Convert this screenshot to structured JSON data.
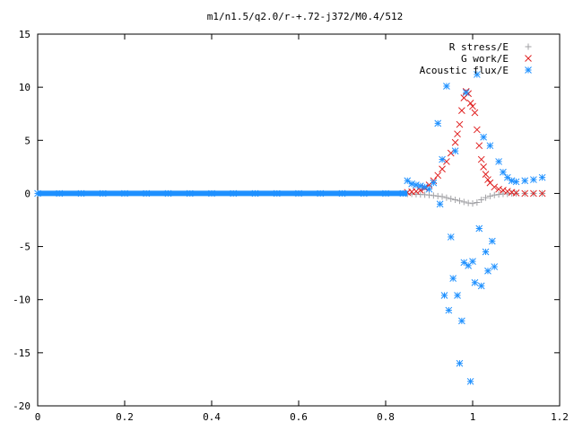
{
  "chart_data": {
    "type": "scatter",
    "title": "m1/n1.5/q2.0/r-+.72-j372/M0.4/512",
    "xlabel": "",
    "ylabel": "",
    "xlim": [
      0,
      1.2
    ],
    "ylim": [
      -20,
      15
    ],
    "xticks": [
      "0",
      "0.2",
      "0.4",
      "0.6",
      "0.8",
      "1",
      "1.2"
    ],
    "yticks": [
      "15",
      "10",
      "5",
      "0",
      "-5",
      "-10",
      "-15",
      "-20"
    ],
    "grid": false,
    "legend_position": "top-right",
    "series": [
      {
        "name": "R stress/E",
        "color": "#a0a0a4",
        "marker": "plus",
        "x": [
          0.85,
          0.86,
          0.87,
          0.88,
          0.89,
          0.9,
          0.91,
          0.92,
          0.93,
          0.94,
          0.95,
          0.96,
          0.97,
          0.98,
          0.99,
          1.0,
          1.01,
          1.02,
          1.03,
          1.04,
          1.05,
          1.06,
          1.07,
          1.08,
          1.09,
          1.1,
          1.12,
          1.14,
          1.16
        ],
        "y": [
          -0.05,
          -0.05,
          -0.08,
          -0.1,
          -0.12,
          -0.15,
          -0.2,
          -0.25,
          -0.3,
          -0.4,
          -0.5,
          -0.6,
          -0.7,
          -0.8,
          -0.9,
          -0.95,
          -0.85,
          -0.6,
          -0.4,
          -0.25,
          -0.15,
          -0.1,
          -0.05,
          -0.05,
          0,
          0,
          0,
          0,
          0
        ]
      },
      {
        "name": "G work/E",
        "color": "#e02020",
        "marker": "cross",
        "x": [
          0.85,
          0.86,
          0.87,
          0.88,
          0.89,
          0.9,
          0.91,
          0.92,
          0.93,
          0.94,
          0.95,
          0.96,
          0.965,
          0.97,
          0.975,
          0.98,
          0.985,
          0.99,
          0.995,
          1.0,
          1.005,
          1.01,
          1.015,
          1.02,
          1.025,
          1.03,
          1.035,
          1.04,
          1.05,
          1.06,
          1.07,
          1.08,
          1.09,
          1.1,
          1.12,
          1.14,
          1.16
        ],
        "y": [
          0.1,
          0.15,
          0.2,
          0.3,
          0.5,
          0.8,
          1.2,
          1.7,
          2.3,
          3.0,
          3.8,
          4.8,
          5.6,
          6.5,
          7.8,
          9.0,
          9.6,
          9.4,
          8.5,
          8.2,
          7.6,
          6.0,
          4.5,
          3.2,
          2.5,
          1.8,
          1.3,
          1.0,
          0.6,
          0.4,
          0.3,
          0.2,
          0.1,
          0.05,
          0,
          0,
          0
        ]
      },
      {
        "name": "Acoustic flux/E",
        "color": "#1e90ff",
        "marker": "star",
        "x": [
          0.0,
          0.05,
          0.1,
          0.15,
          0.2,
          0.25,
          0.3,
          0.35,
          0.4,
          0.45,
          0.5,
          0.55,
          0.6,
          0.65,
          0.7,
          0.75,
          0.8,
          0.84,
          0.85,
          0.86,
          0.87,
          0.88,
          0.89,
          0.9,
          0.91,
          0.92,
          0.925,
          0.93,
          0.935,
          0.94,
          0.945,
          0.95,
          0.955,
          0.96,
          0.965,
          0.97,
          0.975,
          0.98,
          0.985,
          0.99,
          0.995,
          1.0,
          1.005,
          1.01,
          1.015,
          1.02,
          1.025,
          1.03,
          1.035,
          1.04,
          1.045,
          1.05,
          1.06,
          1.07,
          1.08,
          1.09,
          1.1,
          1.12,
          1.14,
          1.16
        ],
        "y": [
          0,
          0,
          0,
          0,
          0,
          0,
          0,
          0,
          0,
          0,
          0,
          0,
          0,
          0,
          0,
          0,
          0,
          0,
          1.2,
          0.9,
          0.8,
          0.7,
          0.6,
          0.4,
          1.0,
          6.6,
          -1.0,
          3.2,
          -9.6,
          10.1,
          -11.0,
          -4.1,
          -8.0,
          4.0,
          -9.6,
          -16.0,
          -12.0,
          -6.5,
          9.5,
          -6.8,
          -17.7,
          -6.4,
          -8.4,
          11.2,
          -3.3,
          -8.7,
          5.3,
          -5.5,
          -7.3,
          4.5,
          -4.5,
          -6.9,
          3.0,
          2.0,
          1.5,
          1.2,
          1.1,
          1.2,
          1.3,
          1.5
        ]
      }
    ]
  }
}
